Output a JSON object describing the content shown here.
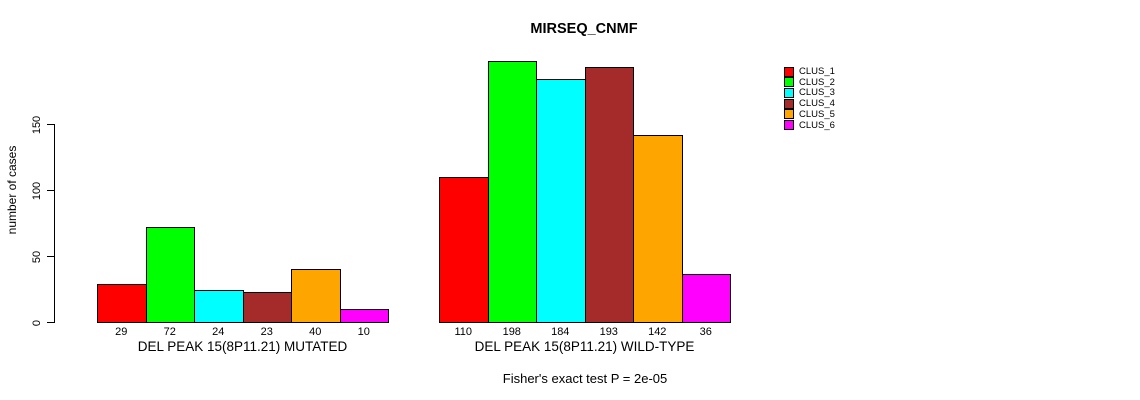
{
  "chart_data": {
    "type": "bar",
    "title": "MIRSEQ_CNMF",
    "ylabel": "number of cases",
    "yticks": [
      0,
      50,
      100,
      150
    ],
    "ylim": [
      0,
      200
    ],
    "grid": false,
    "legend_position": "right",
    "series": [
      {
        "name": "CLUS_1",
        "color": "#ff0000"
      },
      {
        "name": "CLUS_2",
        "color": "#00ff00"
      },
      {
        "name": "CLUS_3",
        "color": "#00ffff"
      },
      {
        "name": "CLUS_4",
        "color": "#a52a2a"
      },
      {
        "name": "CLUS_5",
        "color": "#ffa500"
      },
      {
        "name": "CLUS_6",
        "color": "#ff00ff"
      }
    ],
    "groups": [
      {
        "label": "DEL PEAK 15(8P11.21) MUTATED",
        "values": [
          29,
          72,
          24,
          23,
          40,
          10
        ]
      },
      {
        "label": "DEL PEAK 15(8P11.21) WILD-TYPE",
        "values": [
          110,
          198,
          184,
          193,
          142,
          36
        ]
      }
    ],
    "annotation": "Fisher's exact test P = 2e-05"
  }
}
